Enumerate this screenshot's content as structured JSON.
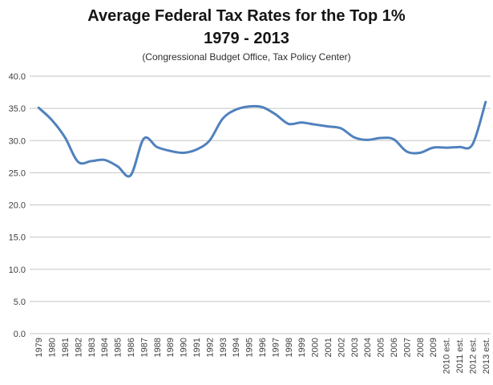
{
  "header": {
    "title_line1": "Average Federal Tax Rates for the Top 1%",
    "title_line2": "1979 - 2013",
    "subtitle": "(Congressional Budget Office, Tax Policy Center)"
  },
  "chart_data": {
    "type": "line",
    "title": "Average Federal Tax Rates for the Top 1% 1979 - 2013",
    "subtitle": "(Congressional Budget Office, Tax Policy Center)",
    "categories": [
      "1979",
      "1980",
      "1981",
      "1982",
      "1983",
      "1984",
      "1985",
      "1986",
      "1987",
      "1988",
      "1989",
      "1990",
      "1991",
      "1992",
      "1993",
      "1994",
      "1995",
      "1996",
      "1997",
      "1998",
      "1999",
      "2000",
      "2001",
      "2002",
      "2003",
      "2004",
      "2005",
      "2006",
      "2007",
      "2008",
      "2009",
      "2010 est.",
      "2011 est.",
      "2012 est.",
      "2013 est."
    ],
    "values": [
      35.1,
      33.2,
      30.5,
      26.7,
      26.8,
      27.0,
      26.0,
      24.6,
      30.3,
      29.0,
      28.4,
      28.1,
      28.6,
      30.0,
      33.4,
      34.8,
      35.3,
      35.2,
      34.1,
      32.6,
      32.8,
      32.5,
      32.2,
      31.9,
      30.5,
      30.1,
      30.4,
      30.2,
      28.3,
      28.1,
      28.9,
      28.9,
      29.0,
      29.4,
      36.0
    ],
    "xlabel": "",
    "ylabel": "",
    "ylim": [
      0,
      40
    ],
    "ytick_step": 5,
    "ytick_labels": [
      "0.0",
      "5.0",
      "10.0",
      "15.0",
      "20.0",
      "25.0",
      "30.0",
      "35.0",
      "40.0"
    ],
    "grid": true,
    "legend": "none",
    "line_smoothed": true,
    "colors": {
      "line": "#4f81bd",
      "gridline": "#c6c6c6",
      "axis_label": "#3f3f3f",
      "title": "#151515",
      "background": "#ffffff"
    }
  }
}
